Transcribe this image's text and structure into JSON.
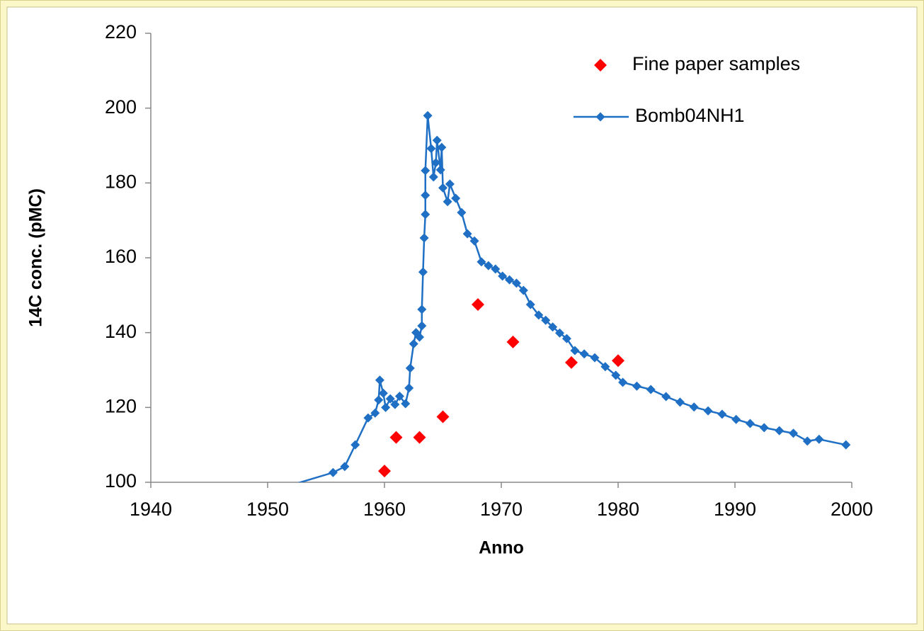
{
  "chart_data": {
    "type": "scatter",
    "xlabel": "Anno",
    "ylabel": "14C conc. (pMC)",
    "xlim": [
      1940,
      2000
    ],
    "xticks": [
      1940,
      1950,
      1960,
      1970,
      1980,
      1990,
      2000
    ],
    "ylim": [
      100,
      220
    ],
    "yticks": [
      100,
      120,
      140,
      160,
      180,
      200,
      220
    ],
    "legend": "upper right",
    "series": [
      {
        "name": "Fine paper samples",
        "color": "#ff0000",
        "line": false,
        "x": [
          1960,
          1961,
          1963,
          1965,
          1968,
          1971,
          1976,
          1980
        ],
        "values": [
          103,
          112,
          112,
          117.5,
          147.5,
          137.5,
          132,
          132.5
        ]
      },
      {
        "name": "Bomb04NH1",
        "color": "#1f6fc5",
        "line": true,
        "x": [
          1951.0,
          1955.6,
          1956.6,
          1957.5,
          1958.6,
          1959.2,
          1959.5,
          1959.6,
          1959.9,
          1960.1,
          1960.5,
          1960.9,
          1961.3,
          1961.8,
          1962.1,
          1962.2,
          1962.5,
          1962.7,
          1963.0,
          1963.2,
          1963.2,
          1963.3,
          1963.4,
          1963.5,
          1963.5,
          1963.5,
          1963.7,
          1964.0,
          1964.2,
          1964.4,
          1964.5,
          1964.8,
          1964.9,
          1965.0,
          1965.4,
          1965.6,
          1966.1,
          1966.6,
          1967.1,
          1967.7,
          1968.3,
          1968.9,
          1969.5,
          1970.1,
          1970.7,
          1971.3,
          1971.9,
          1972.5,
          1973.2,
          1973.8,
          1974.4,
          1975.0,
          1975.6,
          1976.3,
          1977.1,
          1978.0,
          1978.9,
          1979.8,
          1980.4,
          1981.6,
          1982.8,
          1984.1,
          1985.3,
          1986.5,
          1987.7,
          1988.9,
          1990.1,
          1991.3,
          1992.5,
          1993.8,
          1995.0,
          1996.2,
          1997.2,
          1999.5
        ],
        "values": [
          98.3,
          102.6,
          104.2,
          110,
          117.2,
          118.5,
          122,
          127.3,
          123.8,
          120,
          122.3,
          120.8,
          123,
          121,
          125.2,
          130.5,
          137,
          140,
          138.8,
          141.8,
          146.2,
          156.2,
          165.3,
          171.6,
          176.7,
          183.3,
          198,
          189.2,
          181.6,
          185.4,
          191.4,
          183.5,
          189.5,
          178.7,
          175,
          179.7,
          175.9,
          172.1,
          166.4,
          164.5,
          158.9,
          157.9,
          157,
          155.1,
          154.1,
          153.2,
          151.3,
          147.5,
          144.7,
          143.3,
          141.5,
          139.9,
          138.4,
          135.2,
          134.3,
          133.3,
          130.9,
          128.6,
          126.7,
          125.7,
          124.8,
          122.9,
          121.4,
          120.1,
          119.1,
          118.2,
          116.8,
          115.7,
          114.6,
          113.8,
          113.1,
          111,
          111.5,
          110
        ]
      }
    ]
  }
}
